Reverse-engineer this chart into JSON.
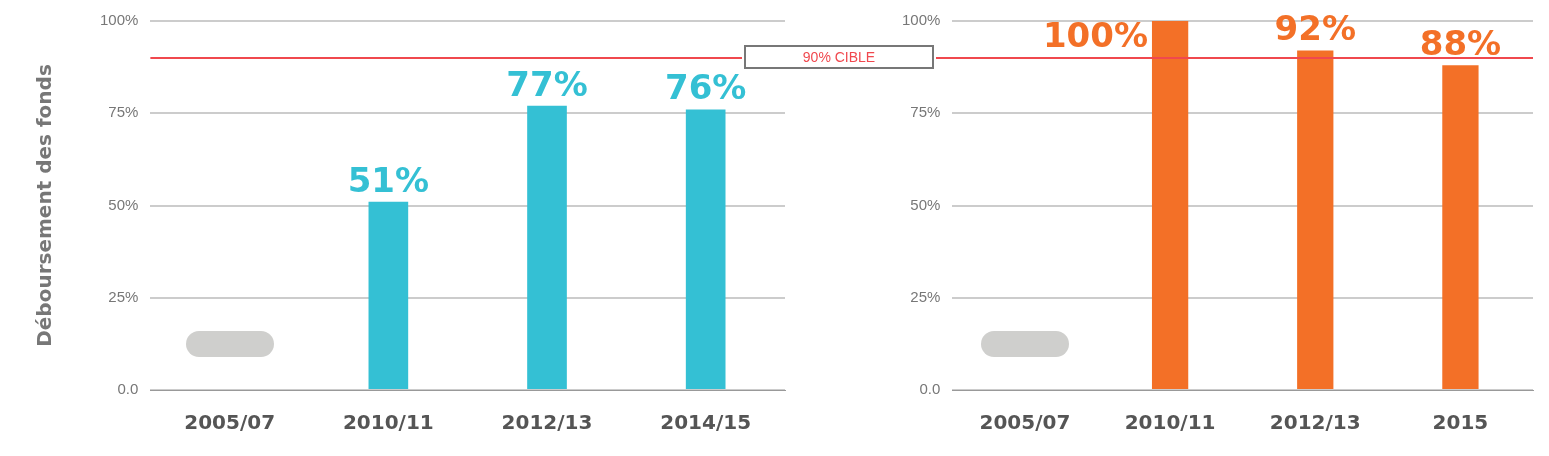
{
  "chart_data": [
    {
      "type": "bar",
      "ylabel": "Déboursement des fonds",
      "categories": [
        "2005/07",
        "2010/11",
        "2012/13",
        "2014/15"
      ],
      "series": [
        {
          "color": "#34c0d4",
          "values": [
            null,
            51,
            77,
            76
          ]
        }
      ],
      "value_labels": [
        null,
        "51%",
        "77%",
        "76%"
      ],
      "ylim": [
        0,
        100
      ],
      "yticks": [
        {
          "value": 0,
          "label": "0.0"
        },
        {
          "value": 25,
          "label": "25%"
        },
        {
          "value": 50,
          "label": "50%"
        },
        {
          "value": 75,
          "label": "75%"
        },
        {
          "value": 100,
          "label": "100%"
        }
      ],
      "grid": "y",
      "legend": false,
      "ref_lines": [
        {
          "axis": "y",
          "value": 90,
          "label": "90% CIBLE",
          "color": "#f0484e"
        }
      ]
    },
    {
      "type": "bar",
      "categories": [
        "2005/07",
        "2010/11",
        "2012/13",
        "2015"
      ],
      "series": [
        {
          "color": "#f37027",
          "values": [
            null,
            100,
            92,
            88
          ]
        }
      ],
      "value_labels": [
        null,
        "100%",
        "92%",
        "88%"
      ],
      "ylim": [
        0,
        100
      ],
      "yticks": [
        {
          "value": 0,
          "label": "0.0"
        },
        {
          "value": 25,
          "label": "25%"
        },
        {
          "value": 50,
          "label": "50%"
        },
        {
          "value": 75,
          "label": "75%"
        },
        {
          "value": 100,
          "label": "100%"
        }
      ],
      "grid": "y",
      "legend": false,
      "ref_lines": [
        {
          "axis": "y",
          "value": 90,
          "color": "#f0484e"
        }
      ]
    }
  ]
}
